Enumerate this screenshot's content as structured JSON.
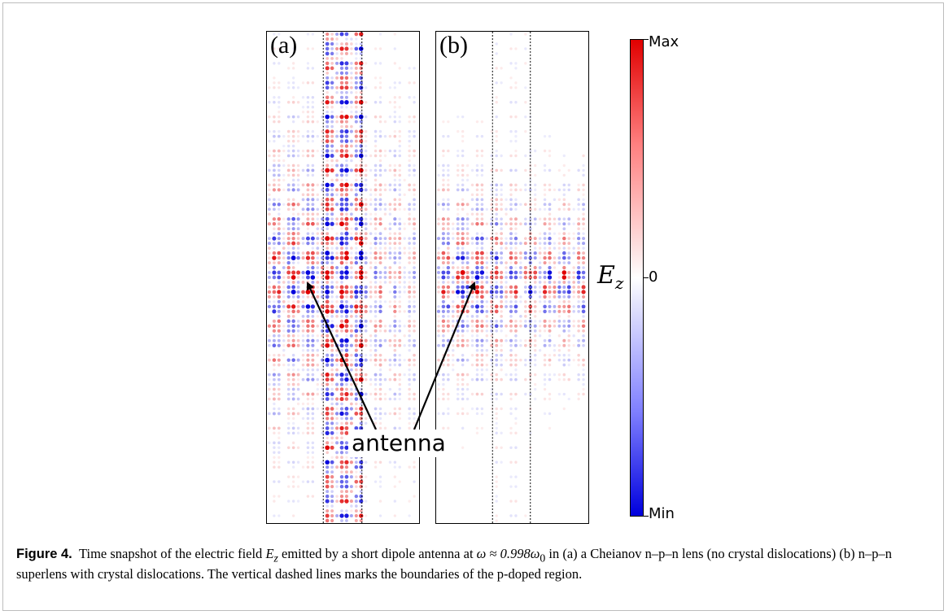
{
  "figure": {
    "panels": [
      {
        "label": "(a)",
        "dashed_lines": 2
      },
      {
        "label": "(b)",
        "dashed_lines": 2
      }
    ],
    "colorbar": {
      "title": "E",
      "title_sub": "z",
      "max_label": "Max",
      "zero_label": "0",
      "min_label": "Min",
      "colors": {
        "max": "#e00000",
        "zero": "#ffffff",
        "min": "#0000dd"
      }
    },
    "annotation": {
      "label": "antenna"
    }
  },
  "caption": {
    "label": "Figure 4.",
    "part1": "Time snapshot of the electric field ",
    "field_symbol": "E",
    "field_sub": "z",
    "part2": " emitted by a short dipole antenna at ",
    "freq_expr": "ω ≈ 0.998ω",
    "freq_sub": "0",
    "part3": " in (a) a Cheianov n–p–n lens (no crystal dislocations) (b) n–p–n superlens with crystal dislocations. The vertical dashed lines marks the boundaries of the p-doped region."
  }
}
